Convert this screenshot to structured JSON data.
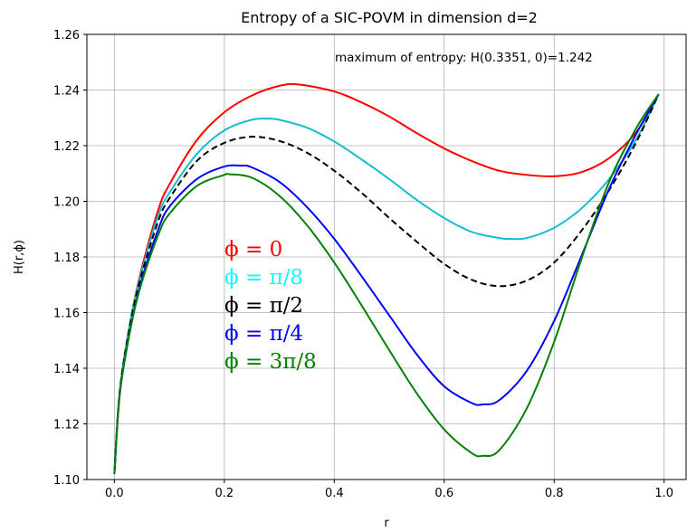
{
  "chart_data": {
    "type": "line",
    "title": "Entropy of a SIC-POVM in dimension d=2",
    "xlabel": "r",
    "ylabel": "H(r,ϕ)",
    "xlim": [
      -0.05,
      1.04
    ],
    "ylim": [
      1.1,
      1.26
    ],
    "xticks": [
      "0.0",
      "0.2",
      "0.4",
      "0.6",
      "0.8",
      "1.0"
    ],
    "yticks": [
      "1.10",
      "1.12",
      "1.14",
      "1.16",
      "1.18",
      "1.20",
      "1.22",
      "1.24",
      "1.26"
    ],
    "grid": true,
    "annotation": "maximum of entropy: H(0.3351, 0)=1.242",
    "legend_labels": [
      {
        "text": "ϕ = 0",
        "color": "#ff0000"
      },
      {
        "text": "ϕ = π/8",
        "color": "#00ffff"
      },
      {
        "text": "ϕ = π/2",
        "color": "#000000"
      },
      {
        "text": "ϕ = π/4",
        "color": "#0000ff"
      },
      {
        "text": "ϕ = 3π/8",
        "color": "#008000"
      }
    ],
    "series": [
      {
        "color": "#ff0000",
        "dashed": false,
        "x": [
          0,
          0.01,
          0.03,
          0.05,
          0.08,
          0.1,
          0.15,
          0.2,
          0.25,
          0.3,
          0.3351,
          0.4,
          0.45,
          0.5,
          0.55,
          0.6,
          0.65,
          0.7,
          0.75,
          0.8,
          0.85,
          0.9,
          0.95,
          0.99
        ],
        "y": [
          1.102,
          1.132,
          1.158,
          1.176,
          1.197,
          1.206,
          1.222,
          1.232,
          1.238,
          1.2415,
          1.242,
          1.2395,
          1.2355,
          1.2305,
          1.2245,
          1.219,
          1.2145,
          1.211,
          1.2095,
          1.209,
          1.2105,
          1.2155,
          1.225,
          1.2385
        ]
      },
      {
        "color": "#17becf",
        "dashed": false,
        "x": [
          0,
          0.01,
          0.03,
          0.05,
          0.08,
          0.1,
          0.15,
          0.2,
          0.25,
          0.28,
          0.3,
          0.35,
          0.4,
          0.45,
          0.5,
          0.55,
          0.6,
          0.65,
          0.7,
          0.72,
          0.75,
          0.8,
          0.85,
          0.9,
          0.95,
          0.99
        ],
        "y": [
          1.102,
          1.132,
          1.158,
          1.175,
          1.195,
          1.203,
          1.217,
          1.2255,
          1.2293,
          1.2297,
          1.2293,
          1.2265,
          1.2215,
          1.215,
          1.208,
          1.2005,
          1.194,
          1.189,
          1.1868,
          1.1865,
          1.1868,
          1.1905,
          1.1975,
          1.208,
          1.2225,
          1.2385
        ]
      },
      {
        "color": "#000000",
        "dashed": true,
        "x": [
          0,
          0.01,
          0.03,
          0.05,
          0.08,
          0.1,
          0.15,
          0.2,
          0.25,
          0.3,
          0.35,
          0.4,
          0.45,
          0.5,
          0.55,
          0.6,
          0.65,
          0.7,
          0.75,
          0.8,
          0.85,
          0.9,
          0.95,
          0.99
        ],
        "y": [
          1.102,
          1.132,
          1.157,
          1.174,
          1.193,
          1.201,
          1.2145,
          1.221,
          1.2232,
          1.2217,
          1.2175,
          1.211,
          1.203,
          1.194,
          1.1855,
          1.1775,
          1.1718,
          1.1695,
          1.1715,
          1.178,
          1.1895,
          1.204,
          1.2215,
          1.2385
        ]
      },
      {
        "color": "#0000ff",
        "dashed": false,
        "x": [
          0,
          0.01,
          0.03,
          0.05,
          0.08,
          0.1,
          0.15,
          0.2,
          0.23,
          0.25,
          0.3,
          0.35,
          0.4,
          0.45,
          0.5,
          0.55,
          0.6,
          0.65,
          0.67,
          0.7,
          0.75,
          0.8,
          0.85,
          0.9,
          0.95,
          0.99
        ],
        "y": [
          1.102,
          1.131,
          1.155,
          1.172,
          1.19,
          1.198,
          1.208,
          1.2125,
          1.2128,
          1.2122,
          1.207,
          1.198,
          1.1865,
          1.173,
          1.159,
          1.145,
          1.1335,
          1.1275,
          1.127,
          1.1285,
          1.139,
          1.157,
          1.1805,
          1.2045,
          1.2245,
          1.2385
        ]
      },
      {
        "color": "#008000",
        "dashed": false,
        "x": [
          0,
          0.01,
          0.03,
          0.05,
          0.08,
          0.1,
          0.15,
          0.2,
          0.21,
          0.25,
          0.3,
          0.35,
          0.4,
          0.45,
          0.5,
          0.55,
          0.6,
          0.65,
          0.67,
          0.7,
          0.75,
          0.8,
          0.85,
          0.9,
          0.95,
          0.99
        ],
        "y": [
          1.102,
          1.131,
          1.155,
          1.171,
          1.188,
          1.1955,
          1.2055,
          1.2095,
          1.2097,
          1.2085,
          1.202,
          1.1915,
          1.178,
          1.1625,
          1.1465,
          1.131,
          1.118,
          1.1095,
          1.1085,
          1.1105,
          1.1255,
          1.1495,
          1.1795,
          1.207,
          1.2265,
          1.2385
        ]
      }
    ]
  }
}
